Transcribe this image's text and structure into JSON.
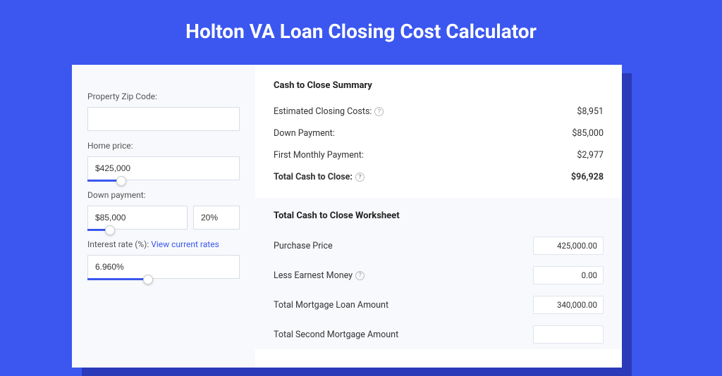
{
  "colors": {
    "background": "#3b57f0",
    "shadow": "#2a3ab8",
    "card": "#ffffff",
    "panel": "#f7f9fc",
    "border": "#d8dde6",
    "text": "#333333",
    "muted": "#555555",
    "link": "#3b57f0"
  },
  "title": "Holton VA Loan Closing Cost Calculator",
  "form": {
    "zip": {
      "label": "Property Zip Code:",
      "value": ""
    },
    "price": {
      "label": "Home price:",
      "value": "$425,000",
      "slider_pct": 22
    },
    "down": {
      "label": "Down payment:",
      "value": "$85,000",
      "pct_value": "20%",
      "slider_pct": 15
    },
    "rate": {
      "label": "Interest rate (%):",
      "link_text": "View current rates",
      "value": "6.960%",
      "slider_pct": 40
    }
  },
  "summary": {
    "title": "Cash to Close Summary",
    "rows": [
      {
        "label": "Estimated Closing Costs:",
        "help": true,
        "value": "$8,951",
        "bold": false
      },
      {
        "label": "Down Payment:",
        "help": false,
        "value": "$85,000",
        "bold": false
      },
      {
        "label": "First Monthly Payment:",
        "help": false,
        "value": "$2,977",
        "bold": false
      },
      {
        "label": "Total Cash to Close:",
        "help": true,
        "value": "$96,928",
        "bold": true
      }
    ]
  },
  "worksheet": {
    "title": "Total Cash to Close Worksheet",
    "rows": [
      {
        "label": "Purchase Price",
        "help": false,
        "value": "425,000.00"
      },
      {
        "label": "Less Earnest Money",
        "help": true,
        "value": "0.00"
      },
      {
        "label": "Total Mortgage Loan Amount",
        "help": false,
        "value": "340,000.00"
      },
      {
        "label": "Total Second Mortgage Amount",
        "help": false,
        "value": ""
      }
    ]
  }
}
